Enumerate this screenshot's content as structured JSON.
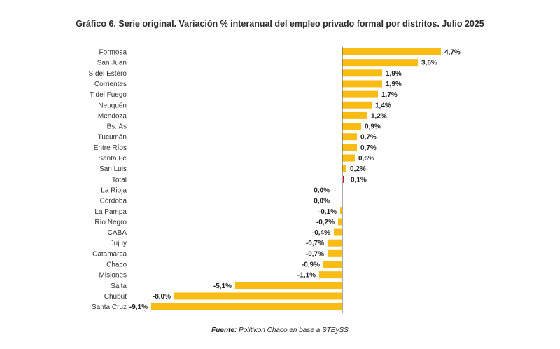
{
  "chart_data": {
    "type": "bar",
    "orientation": "horizontal",
    "title": "Gráfico 6. Serie original. Variación % interanual del empleo privado formal por distritos. Julio 2025",
    "xlabel": "",
    "ylabel": "",
    "categories": [
      "Formosa",
      "San Juan",
      "S del Estero",
      "Corrientes",
      "T del Fuego",
      "Neuquén",
      "Mendoza",
      "Bs. As",
      "Tucumán",
      "Entre Ríos",
      "Santa Fe",
      "San Luis",
      "Total",
      "La Rioja",
      "Córdoba",
      "La Pampa",
      "Río Negro",
      "CABA",
      "Jujuy",
      "Catamarca",
      "Chaco",
      "Misiones",
      "Salta",
      "Chubut",
      "Santa Cruz"
    ],
    "values": [
      4.7,
      3.6,
      1.9,
      1.9,
      1.7,
      1.4,
      1.2,
      0.9,
      0.7,
      0.7,
      0.6,
      0.2,
      0.1,
      0.0,
      0.0,
      -0.1,
      -0.2,
      -0.4,
      -0.7,
      -0.7,
      -0.9,
      -1.1,
      -5.1,
      -8.0,
      -9.1
    ],
    "labels": [
      "4,7%",
      "3,6%",
      "1,9%",
      "1,9%",
      "1,7%",
      "1,4%",
      "1,2%",
      "0,9%",
      "0,7%",
      "0,7%",
      "0,6%",
      "0,2%",
      "0,1%",
      "0,0%",
      "0,0%",
      "-0,1%",
      "-0,2%",
      "-0,4%",
      "-0,7%",
      "-0,7%",
      "-0,9%",
      "-1,1%",
      "-5,1%",
      "-8,0%",
      "-9,1%"
    ],
    "highlight_category": "Total",
    "colors": {
      "bar": "#F9BC14",
      "highlight": "#C8102E",
      "axis": "#555555",
      "text": "#333333"
    },
    "grid": false,
    "legend": "none"
  },
  "source": {
    "label": "Fuente:",
    "text": "Politikon Chaco en base a STEySS"
  }
}
